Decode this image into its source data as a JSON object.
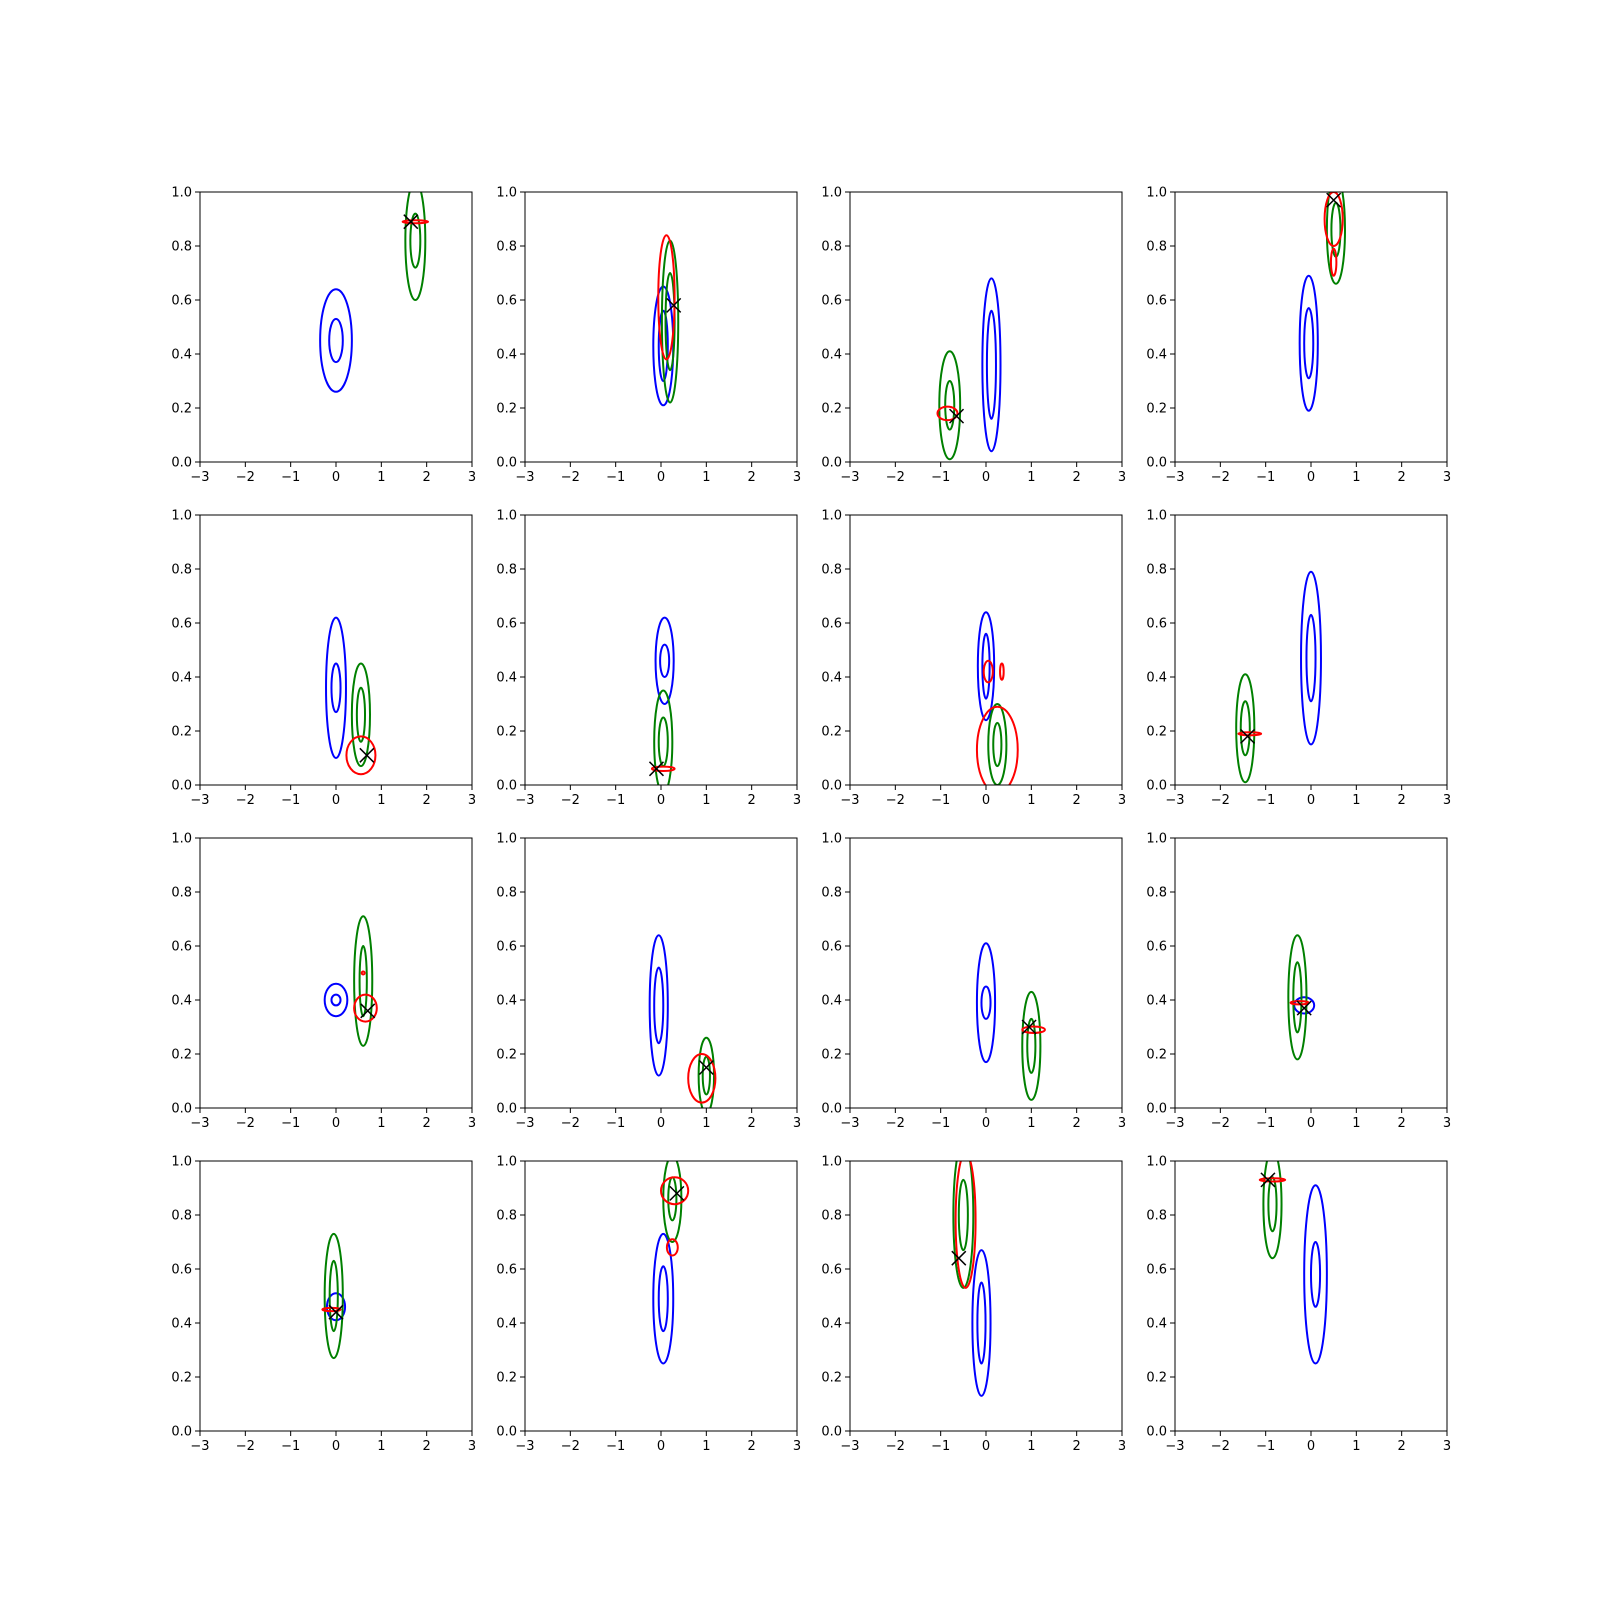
{
  "figure": {
    "grid_rows": 4,
    "grid_cols": 4
  },
  "colors": {
    "contour_a": "#0000ff",
    "contour_b": "#008000",
    "contour_c": "#ff0000",
    "marker": "#000000"
  },
  "chart_data": [
    {
      "type": "contour",
      "xlim": [
        -3,
        3
      ],
      "ylim": [
        0,
        1
      ],
      "xticks": [
        "−3",
        "−2",
        "−1",
        "0",
        "1",
        "2",
        "3"
      ],
      "yticks": [
        "0.0",
        "0.2",
        "0.4",
        "0.6",
        "0.8",
        "1.0"
      ],
      "grid": false,
      "blue": {
        "cx": 0.0,
        "cy": 0.45,
        "levels": [
          {
            "w": 0.35,
            "h": 0.19
          },
          {
            "w": 0.15,
            "h": 0.08
          }
        ]
      },
      "green": {
        "cx": 1.75,
        "cy": 0.82,
        "levels": [
          {
            "w": 0.22,
            "h": 0.22
          },
          {
            "w": 0.11,
            "h": 0.1
          }
        ]
      },
      "red": [
        {
          "cx": 1.75,
          "cy": 0.89,
          "w": 0.28,
          "h": 0.005
        }
      ],
      "marker": {
        "x": 1.65,
        "y": 0.89
      }
    },
    {
      "type": "contour",
      "xlim": [
        -3,
        3
      ],
      "ylim": [
        0,
        1
      ],
      "xticks": [
        "−3",
        "−2",
        "−1",
        "0",
        "1",
        "2",
        "3"
      ],
      "yticks": [
        "0.0",
        "0.2",
        "0.4",
        "0.6",
        "0.8",
        "1.0"
      ],
      "grid": false,
      "blue": {
        "cx": 0.05,
        "cy": 0.43,
        "levels": [
          {
            "w": 0.22,
            "h": 0.22
          },
          {
            "w": 0.1,
            "h": 0.13
          }
        ]
      },
      "green": {
        "cx": 0.2,
        "cy": 0.52,
        "levels": [
          {
            "w": 0.18,
            "h": 0.3
          },
          {
            "w": 0.1,
            "h": 0.18
          }
        ]
      },
      "red": [
        {
          "cx": 0.12,
          "cy": 0.61,
          "w": 0.18,
          "h": 0.23
        }
      ],
      "marker": {
        "x": 0.28,
        "y": 0.58
      }
    },
    {
      "type": "contour",
      "xlim": [
        -3,
        3
      ],
      "ylim": [
        0,
        1
      ],
      "xticks": [
        "−3",
        "−2",
        "−1",
        "0",
        "1",
        "2",
        "3"
      ],
      "yticks": [
        "0.0",
        "0.2",
        "0.4",
        "0.6",
        "0.8",
        "1.0"
      ],
      "grid": false,
      "blue": {
        "cx": 0.12,
        "cy": 0.36,
        "levels": [
          {
            "w": 0.2,
            "h": 0.32
          },
          {
            "w": 0.1,
            "h": 0.2
          }
        ]
      },
      "green": {
        "cx": -0.8,
        "cy": 0.21,
        "levels": [
          {
            "w": 0.23,
            "h": 0.2
          },
          {
            "w": 0.1,
            "h": 0.09
          }
        ]
      },
      "red": [
        {
          "cx": -0.85,
          "cy": 0.18,
          "w": 0.22,
          "h": 0.025
        }
      ],
      "marker": {
        "x": -0.65,
        "y": 0.17
      }
    },
    {
      "type": "contour",
      "xlim": [
        -3,
        3
      ],
      "ylim": [
        0,
        1
      ],
      "xticks": [
        "−3",
        "−2",
        "−1",
        "0",
        "1",
        "2",
        "3"
      ],
      "yticks": [
        "0.0",
        "0.2",
        "0.4",
        "0.6",
        "0.8",
        "1.0"
      ],
      "grid": false,
      "blue": {
        "cx": -0.05,
        "cy": 0.44,
        "levels": [
          {
            "w": 0.2,
            "h": 0.25
          },
          {
            "w": 0.1,
            "h": 0.13
          }
        ]
      },
      "green": {
        "cx": 0.55,
        "cy": 0.86,
        "levels": [
          {
            "w": 0.2,
            "h": 0.2
          },
          {
            "w": 0.1,
            "h": 0.1
          }
        ]
      },
      "red": [
        {
          "cx": 0.5,
          "cy": 0.9,
          "w": 0.2,
          "h": 0.1
        },
        {
          "cx": 0.5,
          "cy": 0.74,
          "w": 0.06,
          "h": 0.05
        }
      ],
      "marker": {
        "x": 0.5,
        "y": 0.97
      }
    },
    {
      "type": "contour",
      "xlim": [
        -3,
        3
      ],
      "ylim": [
        0,
        1
      ],
      "xticks": [
        "−3",
        "−2",
        "−1",
        "0",
        "1",
        "2",
        "3"
      ],
      "yticks": [
        "0.0",
        "0.2",
        "0.4",
        "0.6",
        "0.8",
        "1.0"
      ],
      "grid": false,
      "blue": {
        "cx": 0.0,
        "cy": 0.36,
        "levels": [
          {
            "w": 0.22,
            "h": 0.26
          },
          {
            "w": 0.1,
            "h": 0.09
          }
        ]
      },
      "green": {
        "cx": 0.55,
        "cy": 0.26,
        "levels": [
          {
            "w": 0.2,
            "h": 0.19
          },
          {
            "w": 0.09,
            "h": 0.1
          }
        ]
      },
      "red": [
        {
          "cx": 0.55,
          "cy": 0.11,
          "w": 0.32,
          "h": 0.07
        }
      ],
      "marker": {
        "x": 0.68,
        "y": 0.11
      }
    },
    {
      "type": "contour",
      "xlim": [
        -3,
        3
      ],
      "ylim": [
        0,
        1
      ],
      "xticks": [
        "−3",
        "−2",
        "−1",
        "0",
        "1",
        "2",
        "3"
      ],
      "yticks": [
        "0.0",
        "0.2",
        "0.4",
        "0.6",
        "0.8",
        "1.0"
      ],
      "grid": false,
      "blue": {
        "cx": 0.08,
        "cy": 0.46,
        "levels": [
          {
            "w": 0.2,
            "h": 0.16
          },
          {
            "w": 0.1,
            "h": 0.06
          }
        ]
      },
      "green": {
        "cx": 0.05,
        "cy": 0.16,
        "levels": [
          {
            "w": 0.2,
            "h": 0.19
          },
          {
            "w": 0.1,
            "h": 0.09
          }
        ]
      },
      "red": [
        {
          "cx": 0.05,
          "cy": 0.06,
          "w": 0.25,
          "h": 0.008
        }
      ],
      "marker": {
        "x": -0.1,
        "y": 0.06
      }
    },
    {
      "type": "contour",
      "xlim": [
        -3,
        3
      ],
      "ylim": [
        0,
        1
      ],
      "xticks": [
        "−3",
        "−2",
        "−1",
        "0",
        "1",
        "2",
        "3"
      ],
      "yticks": [
        "0.0",
        "0.2",
        "0.4",
        "0.6",
        "0.8",
        "1.0"
      ],
      "grid": false,
      "blue": {
        "cx": 0.0,
        "cy": 0.44,
        "levels": [
          {
            "w": 0.18,
            "h": 0.2
          },
          {
            "w": 0.08,
            "h": 0.12
          }
        ]
      },
      "green": {
        "cx": 0.25,
        "cy": 0.15,
        "levels": [
          {
            "w": 0.2,
            "h": 0.15
          },
          {
            "w": 0.09,
            "h": 0.08
          }
        ]
      },
      "red": [
        {
          "cx": 0.25,
          "cy": 0.13,
          "w": 0.45,
          "h": 0.16
        },
        {
          "cx": 0.05,
          "cy": 0.42,
          "w": 0.1,
          "h": 0.04
        },
        {
          "cx": 0.35,
          "cy": 0.42,
          "w": 0.04,
          "h": 0.03
        }
      ],
      "marker": null
    },
    {
      "type": "contour",
      "xlim": [
        -3,
        3
      ],
      "ylim": [
        0,
        1
      ],
      "xticks": [
        "−3",
        "−2",
        "−1",
        "0",
        "1",
        "2",
        "3"
      ],
      "yticks": [
        "0.0",
        "0.2",
        "0.4",
        "0.6",
        "0.8",
        "1.0"
      ],
      "grid": false,
      "blue": {
        "cx": 0.0,
        "cy": 0.47,
        "levels": [
          {
            "w": 0.22,
            "h": 0.32
          },
          {
            "w": 0.1,
            "h": 0.16
          }
        ]
      },
      "green": {
        "cx": -1.45,
        "cy": 0.21,
        "levels": [
          {
            "w": 0.2,
            "h": 0.2
          },
          {
            "w": 0.1,
            "h": 0.1
          }
        ]
      },
      "red": [
        {
          "cx": -1.35,
          "cy": 0.19,
          "w": 0.25,
          "h": 0.005
        }
      ],
      "marker": {
        "x": -1.4,
        "y": 0.18
      }
    },
    {
      "type": "contour",
      "xlim": [
        -3,
        3
      ],
      "ylim": [
        0,
        1
      ],
      "xticks": [
        "−3",
        "−2",
        "−1",
        "0",
        "1",
        "2",
        "3"
      ],
      "yticks": [
        "0.0",
        "0.2",
        "0.4",
        "0.6",
        "0.8",
        "1.0"
      ],
      "grid": false,
      "blue": {
        "cx": 0.0,
        "cy": 0.4,
        "levels": [
          {
            "w": 0.25,
            "h": 0.06
          },
          {
            "w": 0.1,
            "h": 0.02
          }
        ]
      },
      "green": {
        "cx": 0.6,
        "cy": 0.47,
        "levels": [
          {
            "w": 0.2,
            "h": 0.24
          },
          {
            "w": 0.08,
            "h": 0.13
          }
        ]
      },
      "red": [
        {
          "cx": 0.65,
          "cy": 0.37,
          "w": 0.25,
          "h": 0.05
        },
        {
          "cx": 0.6,
          "cy": 0.5,
          "w": 0.01,
          "h": 0.005
        }
      ],
      "marker": {
        "x": 0.7,
        "y": 0.36
      }
    },
    {
      "type": "contour",
      "xlim": [
        -3,
        3
      ],
      "ylim": [
        0,
        1
      ],
      "xticks": [
        "−3",
        "−2",
        "−1",
        "0",
        "1",
        "2",
        "3"
      ],
      "yticks": [
        "0.0",
        "0.2",
        "0.4",
        "0.6",
        "0.8",
        "1.0"
      ],
      "grid": false,
      "blue": {
        "cx": -0.05,
        "cy": 0.38,
        "levels": [
          {
            "w": 0.2,
            "h": 0.26
          },
          {
            "w": 0.1,
            "h": 0.14
          }
        ]
      },
      "green": {
        "cx": 1.0,
        "cy": 0.12,
        "levels": [
          {
            "w": 0.17,
            "h": 0.14
          },
          {
            "w": 0.08,
            "h": 0.07
          }
        ]
      },
      "red": [
        {
          "cx": 0.9,
          "cy": 0.11,
          "w": 0.3,
          "h": 0.09
        }
      ],
      "marker": {
        "x": 1.0,
        "y": 0.15
      }
    },
    {
      "type": "contour",
      "xlim": [
        -3,
        3
      ],
      "ylim": [
        0,
        1
      ],
      "xticks": [
        "−3",
        "−2",
        "−1",
        "0",
        "1",
        "2",
        "3"
      ],
      "yticks": [
        "0.0",
        "0.2",
        "0.4",
        "0.6",
        "0.8",
        "1.0"
      ],
      "grid": false,
      "blue": {
        "cx": 0.0,
        "cy": 0.39,
        "levels": [
          {
            "w": 0.2,
            "h": 0.22
          },
          {
            "w": 0.1,
            "h": 0.06
          }
        ]
      },
      "green": {
        "cx": 1.0,
        "cy": 0.23,
        "levels": [
          {
            "w": 0.2,
            "h": 0.2
          },
          {
            "w": 0.09,
            "h": 0.1
          }
        ]
      },
      "red": [
        {
          "cx": 1.05,
          "cy": 0.29,
          "w": 0.25,
          "h": 0.012
        }
      ],
      "marker": {
        "x": 0.95,
        "y": 0.3
      }
    },
    {
      "type": "contour",
      "xlim": [
        -3,
        3
      ],
      "ylim": [
        0,
        1
      ],
      "xticks": [
        "−3",
        "−2",
        "−1",
        "0",
        "1",
        "2",
        "3"
      ],
      "yticks": [
        "0.0",
        "0.2",
        "0.4",
        "0.6",
        "0.8",
        "1.0"
      ],
      "grid": false,
      "blue": {
        "cx": -0.15,
        "cy": 0.38,
        "levels": [
          {
            "w": 0.22,
            "h": 0.03
          }
        ]
      },
      "green": {
        "cx": -0.3,
        "cy": 0.41,
        "levels": [
          {
            "w": 0.2,
            "h": 0.23
          },
          {
            "w": 0.09,
            "h": 0.13
          }
        ]
      },
      "red": [
        {
          "cx": -0.25,
          "cy": 0.39,
          "w": 0.2,
          "h": 0.006
        }
      ],
      "marker": {
        "x": -0.15,
        "y": 0.37
      }
    },
    {
      "type": "contour",
      "xlim": [
        -3,
        3
      ],
      "ylim": [
        0,
        1
      ],
      "xticks": [
        "−3",
        "−2",
        "−1",
        "0",
        "1",
        "2",
        "3"
      ],
      "yticks": [
        "0.0",
        "0.2",
        "0.4",
        "0.6",
        "0.8",
        "1.0"
      ],
      "grid": false,
      "blue": {
        "cx": 0.0,
        "cy": 0.46,
        "levels": [
          {
            "w": 0.2,
            "h": 0.05
          }
        ]
      },
      "green": {
        "cx": -0.05,
        "cy": 0.5,
        "levels": [
          {
            "w": 0.2,
            "h": 0.23
          },
          {
            "w": 0.09,
            "h": 0.13
          }
        ]
      },
      "red": [
        {
          "cx": -0.1,
          "cy": 0.45,
          "w": 0.2,
          "h": 0.006
        }
      ],
      "marker": {
        "x": 0.0,
        "y": 0.44
      }
    },
    {
      "type": "contour",
      "xlim": [
        -3,
        3
      ],
      "ylim": [
        0,
        1
      ],
      "xticks": [
        "−3",
        "−2",
        "−1",
        "0",
        "1",
        "2",
        "3"
      ],
      "yticks": [
        "0.0",
        "0.2",
        "0.4",
        "0.6",
        "0.8",
        "1.0"
      ],
      "grid": false,
      "blue": {
        "cx": 0.05,
        "cy": 0.49,
        "levels": [
          {
            "w": 0.22,
            "h": 0.24
          },
          {
            "w": 0.1,
            "h": 0.12
          }
        ]
      },
      "green": {
        "cx": 0.25,
        "cy": 0.86,
        "levels": [
          {
            "w": 0.2,
            "h": 0.16
          },
          {
            "w": 0.09,
            "h": 0.08
          }
        ]
      },
      "red": [
        {
          "cx": 0.3,
          "cy": 0.89,
          "w": 0.3,
          "h": 0.05
        },
        {
          "cx": 0.25,
          "cy": 0.68,
          "w": 0.12,
          "h": 0.03
        }
      ],
      "marker": {
        "x": 0.35,
        "y": 0.88
      }
    },
    {
      "type": "contour",
      "xlim": [
        -3,
        3
      ],
      "ylim": [
        0,
        1
      ],
      "xticks": [
        "−3",
        "−2",
        "−1",
        "0",
        "1",
        "2",
        "3"
      ],
      "yticks": [
        "0.0",
        "0.2",
        "0.4",
        "0.6",
        "0.8",
        "1.0"
      ],
      "grid": false,
      "blue": {
        "cx": -0.1,
        "cy": 0.4,
        "levels": [
          {
            "w": 0.2,
            "h": 0.27
          },
          {
            "w": 0.09,
            "h": 0.15
          }
        ]
      },
      "green": {
        "cx": -0.5,
        "cy": 0.8,
        "levels": [
          {
            "w": 0.22,
            "h": 0.27
          },
          {
            "w": 0.1,
            "h": 0.13
          }
        ]
      },
      "red": [
        {
          "cx": -0.45,
          "cy": 0.78,
          "w": 0.22,
          "h": 0.25
        }
      ],
      "marker": {
        "x": -0.6,
        "y": 0.64
      }
    },
    {
      "type": "contour",
      "xlim": [
        -3,
        3
      ],
      "ylim": [
        0,
        1
      ],
      "xticks": [
        "−3",
        "−2",
        "−1",
        "0",
        "1",
        "2",
        "3"
      ],
      "yticks": [
        "0.0",
        "0.2",
        "0.4",
        "0.6",
        "0.8",
        "1.0"
      ],
      "grid": false,
      "blue": {
        "cx": 0.1,
        "cy": 0.58,
        "levels": [
          {
            "w": 0.25,
            "h": 0.33
          },
          {
            "w": 0.1,
            "h": 0.12
          }
        ]
      },
      "green": {
        "cx": -0.85,
        "cy": 0.84,
        "levels": [
          {
            "w": 0.2,
            "h": 0.2
          },
          {
            "w": 0.09,
            "h": 0.1
          }
        ]
      },
      "red": [
        {
          "cx": -0.85,
          "cy": 0.93,
          "w": 0.28,
          "h": 0.006
        }
      ],
      "marker": {
        "x": -0.95,
        "y": 0.93
      }
    }
  ]
}
